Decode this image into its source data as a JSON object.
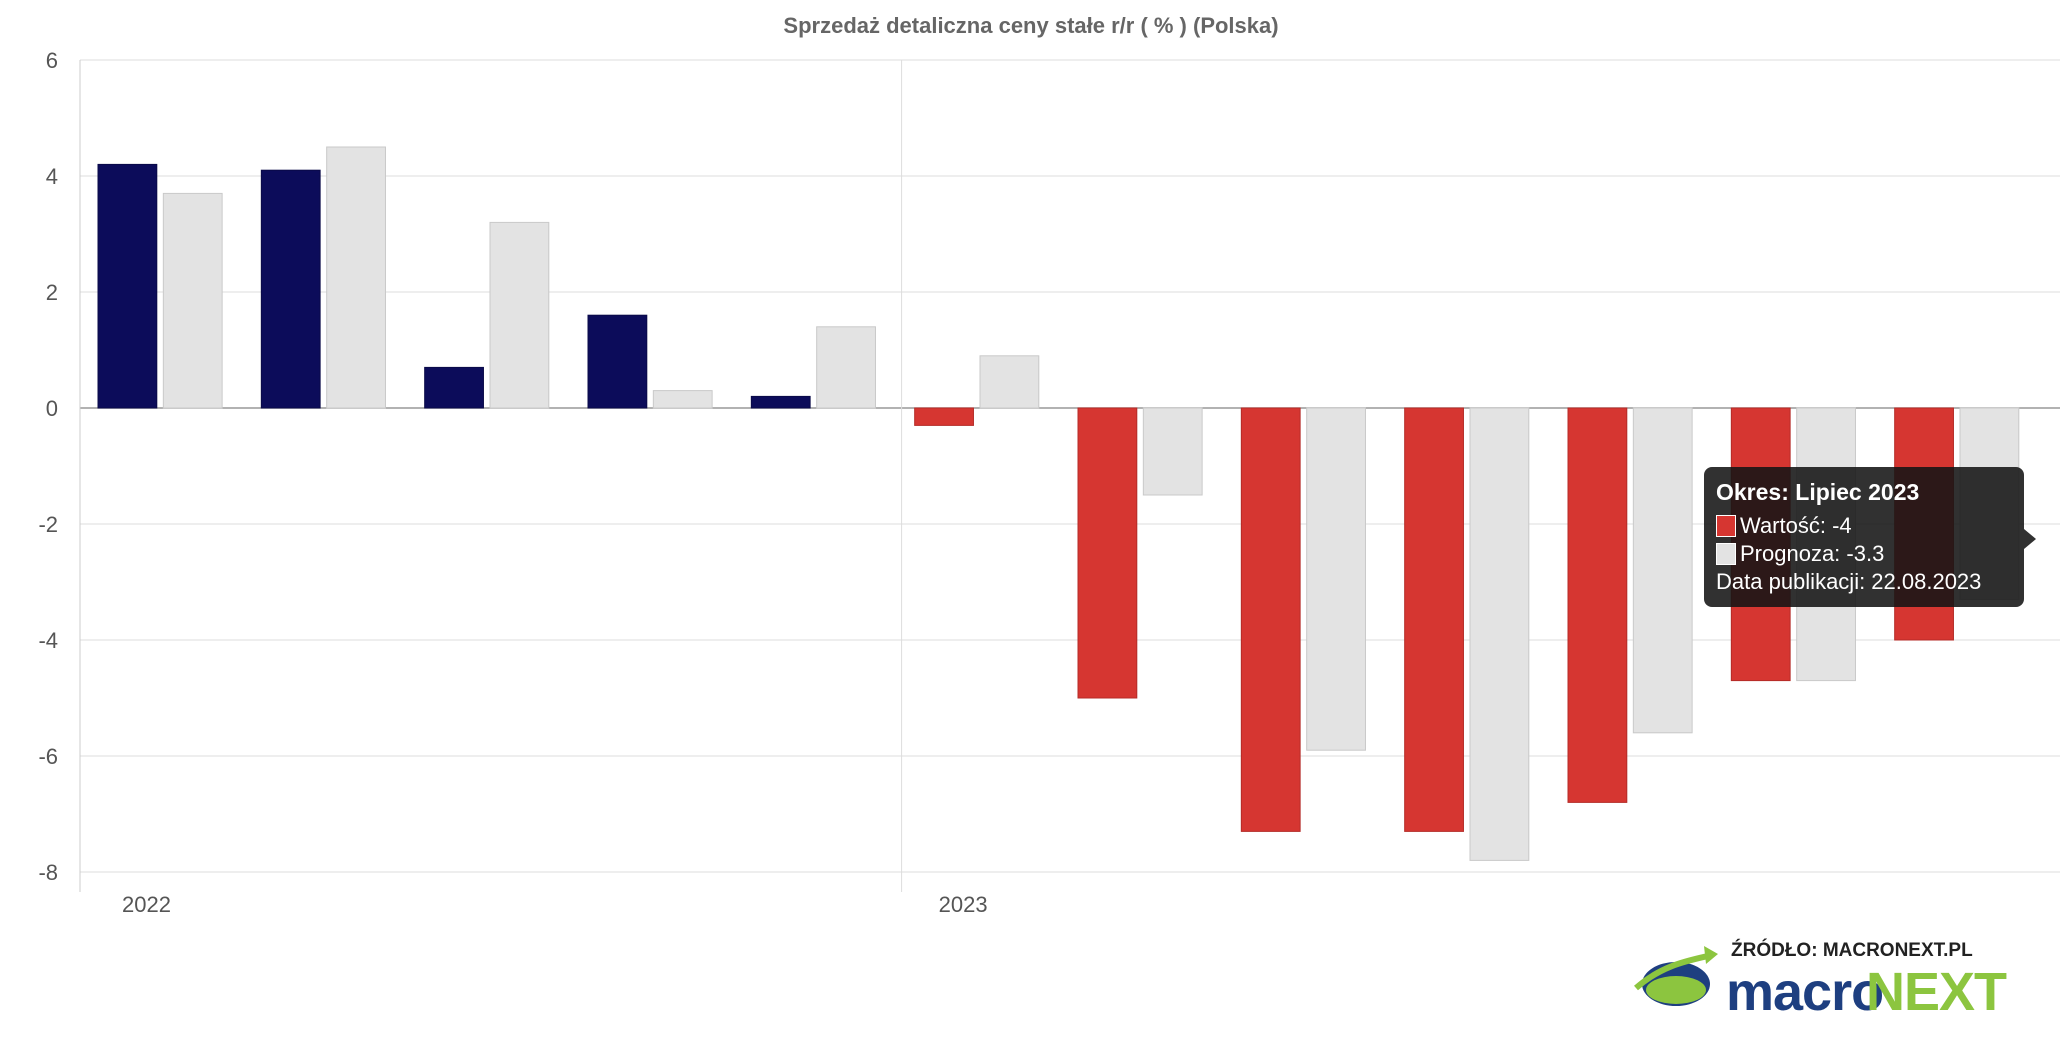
{
  "chart_data": {
    "type": "bar",
    "title": "Sprzedaż detaliczna ceny stałe r/r ( % ) (Polska)",
    "xlabel": "",
    "ylabel": "",
    "ylim": [
      -8,
      6
    ],
    "yticks": [
      6,
      4,
      2,
      0,
      -2,
      -4,
      -6,
      -8
    ],
    "grid": true,
    "x_axis_labels": [
      {
        "label": "2022",
        "at_index": 0
      },
      {
        "label": "2023",
        "at_index": 5
      }
    ],
    "colors": {
      "value_positive": "#0c0c5a",
      "value_negative": "#d63631",
      "forecast": "#e3e3e3"
    },
    "series": [
      {
        "values": [
          4.2,
          4.1,
          0.7,
          1.6,
          0.2,
          -0.3,
          -5.0,
          -7.3,
          -7.3,
          -6.8,
          -4.7,
          -4.0
        ]
      },
      {
        "values": [
          3.7,
          4.5,
          3.2,
          0.3,
          1.4,
          0.9,
          -1.5,
          -5.9,
          -7.8,
          -5.6,
          -4.7,
          -3.3
        ]
      }
    ]
  },
  "tooltip": {
    "title": "Okres: Lipiec 2023",
    "value_line": "Wartość: -4",
    "forecast_line": "Prognoza: -3.3",
    "publication_line": "Data publikacji: 22.08.2023",
    "value_color": "#d63631",
    "forecast_color": "#e3e3e3"
  },
  "logo": {
    "source_text": "ŹRÓDŁO: MACRONEXT.PL",
    "brand_part1": "macro",
    "brand_part2": "NEXT"
  }
}
